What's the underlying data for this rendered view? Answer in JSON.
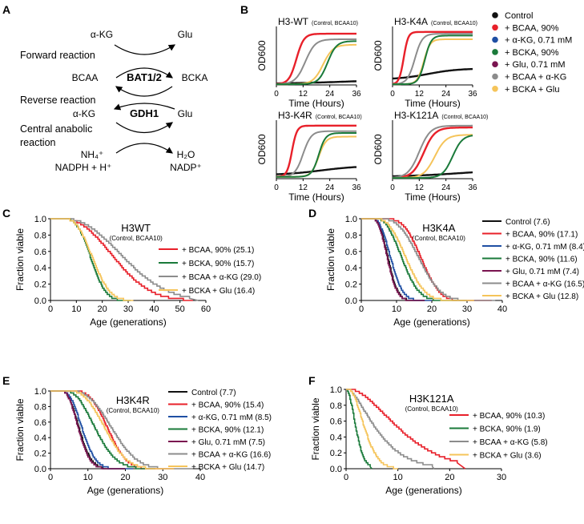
{
  "panel_letters": [
    "A",
    "B",
    "C",
    "D",
    "E",
    "F"
  ],
  "scheme": {
    "alpha_kg_top": "α-KG",
    "glu_top": "Glu",
    "forward": "Forward reaction",
    "bcaa": "BCAA",
    "enzyme1": "BAT1/2",
    "bcka": "BCKA",
    "reverse": "Reverse reaction",
    "alpha_kg_mid": "α-KG",
    "enzyme2": "GDH1",
    "glu_mid": "Glu",
    "central_1": "Central anabolic",
    "central_2": "reaction",
    "nh4": "NH₄⁺",
    "nadph": "NADPH + H⁺",
    "h2o": "H₂O",
    "nadp": "NADP⁺"
  },
  "colors": {
    "control": "#111111",
    "bcaa": "#e8202a",
    "akg": "#1f4fa3",
    "bcka": "#1a7a3a",
    "glu": "#7a1450",
    "bcaa_akg": "#8c8c8c",
    "bcka_glu": "#f5c45a"
  },
  "growth_legend": [
    {
      "key": "control",
      "label": "Control"
    },
    {
      "key": "bcaa",
      "label": "+ BCAA, 90%"
    },
    {
      "key": "akg",
      "label": "+ α-KG, 0.71 mM"
    },
    {
      "key": "bcka",
      "label": "+ BCKA, 90%"
    },
    {
      "key": "glu",
      "label": "+ Glu, 0.71 mM"
    },
    {
      "key": "bcaa_akg",
      "label": "+ BCAA + α-KG"
    },
    {
      "key": "bcka_glu",
      "label": "+ BCKA + Glu"
    }
  ],
  "chart_data": [
    {
      "id": "B1",
      "type": "line",
      "title": "H3-WT",
      "subtitle": "(Control, BCAA10)",
      "xlabel": "Time (Hours)",
      "ylabel": "OD600",
      "xlim": [
        0,
        36
      ],
      "ylim": [
        0,
        1.6
      ],
      "xticks": [
        0,
        12,
        24,
        36
      ],
      "series": [
        {
          "key": "control",
          "curve": "growth",
          "params": [
            0.02,
            0.2,
            40,
            0.05
          ]
        },
        {
          "key": "bcaa",
          "curve": "growth",
          "params": [
            0.02,
            1.4,
            9,
            0.6
          ]
        },
        {
          "key": "bcaa_akg",
          "curve": "growth",
          "params": [
            0.02,
            1.25,
            13,
            0.45
          ]
        },
        {
          "key": "bcka_glu",
          "curve": "growth",
          "params": [
            0.02,
            1.1,
            21,
            0.45
          ]
        },
        {
          "key": "bcka",
          "curve": "growth",
          "params": [
            0.02,
            1.2,
            23,
            0.5
          ]
        }
      ]
    },
    {
      "id": "B2",
      "type": "line",
      "title": "H3-K4A",
      "subtitle": "(Control, BCAA10)",
      "xlabel": "Time (Hours)",
      "ylabel": "OD600",
      "xlim": [
        0,
        36
      ],
      "ylim": [
        0,
        1.6
      ],
      "xticks": [
        0,
        12,
        24,
        36
      ],
      "series": [
        {
          "key": "control",
          "curve": "growth",
          "params": [
            0.15,
            0.45,
            16,
            0.15
          ]
        },
        {
          "key": "bcaa",
          "curve": "growth",
          "params": [
            0.02,
            1.45,
            5,
            1.0
          ]
        },
        {
          "key": "bcaa_akg",
          "curve": "growth",
          "params": [
            0.02,
            1.4,
            10,
            0.6
          ]
        },
        {
          "key": "bcka_glu",
          "curve": "growth",
          "params": [
            0.02,
            1.25,
            14,
            0.7
          ]
        },
        {
          "key": "bcka",
          "curve": "growth",
          "params": [
            0.02,
            1.35,
            14.5,
            0.7
          ]
        }
      ]
    },
    {
      "id": "B3",
      "type": "line",
      "title": "H3-K4R",
      "subtitle": "(Control, BCAA10)",
      "xlabel": "Time (Hours)",
      "ylabel": "OD600",
      "xlim": [
        0,
        36
      ],
      "ylim": [
        0,
        1.6
      ],
      "xticks": [
        0,
        12,
        24,
        36
      ],
      "series": [
        {
          "key": "control",
          "curve": "growth",
          "params": [
            0.1,
            0.35,
            20,
            0.12
          ]
        },
        {
          "key": "bcaa",
          "curve": "growth",
          "params": [
            0.05,
            1.45,
            7,
            0.9
          ]
        },
        {
          "key": "bcaa_akg",
          "curve": "growth",
          "params": [
            0.05,
            1.3,
            12,
            0.55
          ]
        },
        {
          "key": "bcka_glu",
          "curve": "growth",
          "params": [
            0.05,
            1.15,
            19,
            0.6
          ]
        },
        {
          "key": "bcka",
          "curve": "growth",
          "params": [
            0.05,
            1.25,
            19,
            0.65
          ]
        }
      ]
    },
    {
      "id": "B4",
      "type": "line",
      "title": "H3-K121A",
      "subtitle": "(Control, BCAA10)",
      "xlabel": "Time (Hours)",
      "ylabel": "OD600",
      "xlim": [
        0,
        36
      ],
      "ylim": [
        0,
        1.6
      ],
      "xticks": [
        0,
        12,
        24,
        36
      ],
      "series": [
        {
          "key": "control",
          "curve": "growth",
          "params": [
            0.05,
            0.25,
            30,
            0.08
          ]
        },
        {
          "key": "bcaa",
          "curve": "growth",
          "params": [
            0.02,
            1.4,
            14,
            0.4
          ]
        },
        {
          "key": "bcaa_akg",
          "curve": "growth",
          "params": [
            0.02,
            1.45,
            12,
            0.4
          ]
        },
        {
          "key": "bcka_glu",
          "curve": "growth",
          "params": [
            0.02,
            1.2,
            19,
            0.4
          ]
        },
        {
          "key": "bcka",
          "curve": "growth",
          "params": [
            0.02,
            1.2,
            27,
            0.45
          ]
        }
      ]
    },
    {
      "id": "C",
      "type": "line",
      "title": "H3WT",
      "subtitle": "(Control, BCAA10)",
      "xlabel": "Age (generations)",
      "ylabel": "Fraction viable",
      "xlim": [
        0,
        60
      ],
      "ylim": [
        0,
        1.0
      ],
      "xticks": [
        0,
        10,
        20,
        30,
        40,
        50,
        60
      ],
      "yticks": [
        0,
        0.2,
        0.4,
        0.6,
        0.8,
        1.0
      ],
      "series": [
        {
          "key": "bcaa",
          "label": "+ BCAA, 90% (25.1)",
          "curve": "survival",
          "params": [
            25.1,
            4,
            2.3,
            55
          ]
        },
        {
          "key": "bcka",
          "label": "+ BCKA, 90% (15.7)",
          "curve": "survival",
          "params": [
            15.7,
            5,
            2.8,
            31
          ]
        },
        {
          "key": "bcaa_akg",
          "label": "+ BCAA + α-KG (29.0)",
          "curve": "survival",
          "params": [
            29,
            5,
            2.2,
            57
          ]
        },
        {
          "key": "bcka_glu",
          "label": "+ BCKA + Glu (16.4)",
          "curve": "survival",
          "params": [
            16.4,
            5,
            2.6,
            32
          ]
        }
      ]
    },
    {
      "id": "D",
      "type": "line",
      "title": "H3K4A",
      "subtitle": "(Control, BCAA10)",
      "xlabel": "Age (generations)",
      "ylabel": "Fraction viable",
      "xlim": [
        0,
        40
      ],
      "ylim": [
        0,
        1.0
      ],
      "xticks": [
        0,
        10,
        20,
        30,
        40
      ],
      "yticks": [
        0,
        0.2,
        0.4,
        0.6,
        0.8,
        1.0
      ],
      "series": [
        {
          "key": "control",
          "label": "Control (7.6)",
          "curve": "survival",
          "params": [
            7.6,
            3,
            2.5,
            18
          ]
        },
        {
          "key": "bcaa",
          "label": "+ BCAA, 90% (17.1)",
          "curve": "survival",
          "params": [
            17.1,
            6,
            3.2,
            37
          ]
        },
        {
          "key": "akg",
          "label": "+ α-KG, 0.71 mM (8.4)",
          "curve": "survival",
          "params": [
            8.4,
            3,
            2.4,
            20
          ]
        },
        {
          "key": "bcka",
          "label": "+ BCKA, 90% (11.6)",
          "curve": "survival",
          "params": [
            11.6,
            4,
            2.4,
            30
          ]
        },
        {
          "key": "glu",
          "label": "+ Glu, 0.71 mM (7.4)",
          "curve": "survival",
          "params": [
            7.4,
            3,
            2.4,
            18
          ]
        },
        {
          "key": "bcaa_akg",
          "label": "+ BCAA + α-KG (16.5)",
          "curve": "survival",
          "params": [
            16.5,
            5,
            2.8,
            38
          ]
        },
        {
          "key": "bcka_glu",
          "label": "+ BCKA + Glu (12.8)",
          "curve": "survival",
          "params": [
            12.8,
            4,
            2.5,
            32
          ]
        }
      ]
    },
    {
      "id": "E",
      "type": "line",
      "title": "H3K4R",
      "subtitle": "(Control, BCAA10)",
      "xlabel": "Age (generations)",
      "ylabel": "Fraction viable",
      "xlim": [
        0,
        40
      ],
      "ylim": [
        0,
        1.0
      ],
      "xticks": [
        0,
        10,
        20,
        30,
        40
      ],
      "yticks": [
        0,
        0.2,
        0.4,
        0.6,
        0.8,
        1.0
      ],
      "series": [
        {
          "key": "control",
          "label": "Control (7.7)",
          "curve": "survival",
          "params": [
            7.7,
            3,
            2.2,
            20
          ]
        },
        {
          "key": "bcaa",
          "label": "+ BCAA, 90% (15.4)",
          "curve": "survival",
          "params": [
            15.4,
            6,
            2.8,
            33
          ]
        },
        {
          "key": "akg",
          "label": "+ α-KG, 0.71 mM (8.5)",
          "curve": "survival",
          "params": [
            8.5,
            3,
            2.3,
            22
          ]
        },
        {
          "key": "bcka",
          "label": "+ BCKA, 90% (12.1)",
          "curve": "survival",
          "params": [
            12.1,
            4,
            2.2,
            28
          ]
        },
        {
          "key": "glu",
          "label": "+ Glu, 0.71 mM (7.5)",
          "curve": "survival",
          "params": [
            7.5,
            3,
            2.2,
            20
          ]
        },
        {
          "key": "bcaa_akg",
          "label": "+ BCAA + α-KG (16.6)",
          "curve": "survival",
          "params": [
            16.6,
            5,
            2.6,
            38
          ]
        },
        {
          "key": "bcka_glu",
          "label": "+ BCKA + Glu (14.7)",
          "curve": "survival",
          "params": [
            14.7,
            5,
            2.5,
            33
          ]
        }
      ]
    },
    {
      "id": "F",
      "type": "line",
      "title": "H3K121A",
      "subtitle": "(Control, BCAA10)",
      "xlabel": "Age (generations)",
      "ylabel": "Fraction viable",
      "xlim": [
        0,
        30
      ],
      "ylim": [
        0,
        1.0
      ],
      "xticks": [
        0,
        10,
        20,
        30
      ],
      "yticks": [
        0,
        0.2,
        0.4,
        0.6,
        0.8,
        1.0
      ],
      "series": [
        {
          "key": "bcaa",
          "label": "+ BCAA, 90% (10.3)",
          "curve": "survival",
          "params": [
            10.3,
            1,
            1.6,
            23
          ]
        },
        {
          "key": "bcka",
          "label": "+ BCKA, 90% (1.9)",
          "curve": "survival",
          "params": [
            1.9,
            0,
            1.8,
            5
          ]
        },
        {
          "key": "bcaa_akg",
          "label": "+ BCAA + α-KG (5.8)",
          "curve": "survival",
          "params": [
            5.8,
            0.5,
            1.4,
            17
          ]
        },
        {
          "key": "bcka_glu",
          "label": "+ BCKA + Glu (3.6)",
          "curve": "survival",
          "params": [
            3.6,
            0.5,
            1.8,
            10
          ]
        }
      ]
    }
  ]
}
